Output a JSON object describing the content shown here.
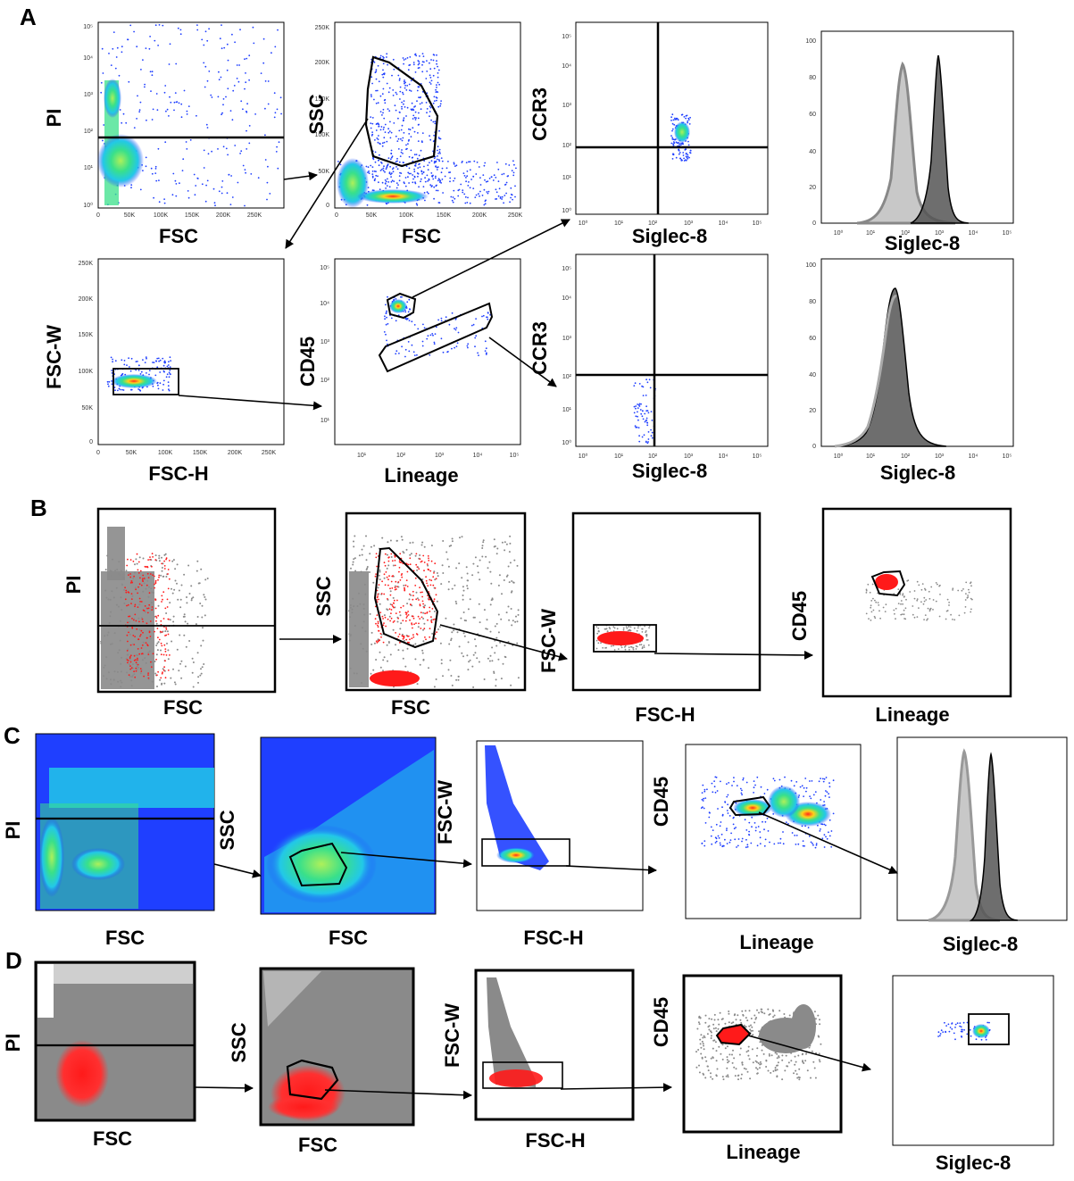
{
  "figure": {
    "panels": [
      {
        "label": "A",
        "rows": [
          [
            {
              "xlabel": "FSC",
              "ylabel": "PI",
              "x_ticks": [
                "0",
                "50K",
                "100K",
                "150K",
                "200K",
                "250K"
              ],
              "y_ticks": [
                "10⁰",
                "10¹",
                "10²",
                "10³",
                "10⁴",
                "10⁵"
              ]
            },
            {
              "xlabel": "FSC",
              "ylabel": "SSC",
              "x_ticks": [
                "0",
                "50K",
                "100K",
                "150K",
                "200K",
                "250K"
              ],
              "y_ticks": [
                "0",
                "50K",
                "100K",
                "150K",
                "200K",
                "250K"
              ]
            },
            {
              "xlabel": "Siglec-8",
              "ylabel": "CCR3",
              "x_ticks": [
                "10⁰",
                "10¹",
                "10²",
                "10³",
                "10⁴",
                "10⁵"
              ],
              "y_ticks": [
                "10⁰",
                "10¹",
                "10²",
                "10³",
                "10⁴",
                "10⁵"
              ]
            },
            {
              "xlabel": "Siglec-8",
              "ylabel": "",
              "x_ticks": [
                "10⁰",
                "10¹",
                "10²",
                "10³",
                "10⁴",
                "10⁵"
              ],
              "y_ticks": [
                "0",
                "20",
                "40",
                "60",
                "80",
                "100"
              ]
            }
          ],
          [
            {
              "xlabel": "FSC-H",
              "ylabel": "FSC-W",
              "x_ticks": [
                "0",
                "50K",
                "100K",
                "150K",
                "200K",
                "250K"
              ],
              "y_ticks": [
                "0",
                "50K",
                "100K",
                "150K",
                "200K",
                "250K"
              ]
            },
            {
              "xlabel": "Lineage",
              "ylabel": "CD45",
              "x_ticks": [
                "10¹",
                "10²",
                "10³",
                "10⁴",
                "10⁵"
              ],
              "y_ticks": [
                "10¹",
                "10²",
                "10³",
                "10⁴",
                "10⁵"
              ]
            },
            {
              "xlabel": "Siglec-8",
              "ylabel": "CCR3",
              "x_ticks": [
                "10⁰",
                "10¹",
                "10²",
                "10³",
                "10⁴",
                "10⁵"
              ],
              "y_ticks": [
                "10⁰",
                "10¹",
                "10²",
                "10³",
                "10⁴",
                "10⁵"
              ]
            },
            {
              "xlabel": "Siglec-8",
              "ylabel": "",
              "x_ticks": [
                "10⁰",
                "10¹",
                "10²",
                "10³",
                "10⁴",
                "10⁵"
              ],
              "y_ticks": [
                "0",
                "20",
                "40",
                "60",
                "80",
                "100"
              ]
            }
          ]
        ]
      },
      {
        "label": "B",
        "plots": [
          {
            "xlabel": "FSC",
            "ylabel": "PI"
          },
          {
            "xlabel": "FSC",
            "ylabel": "SSC"
          },
          {
            "xlabel": "FSC-H",
            "ylabel": "FSC-W"
          },
          {
            "xlabel": "Lineage",
            "ylabel": "CD45"
          }
        ]
      },
      {
        "label": "C",
        "plots": [
          {
            "xlabel": "FSC",
            "ylabel": "PI"
          },
          {
            "xlabel": "FSC",
            "ylabel": "SSC"
          },
          {
            "xlabel": "FSC-H",
            "ylabel": "FSC-W"
          },
          {
            "xlabel": "Lineage",
            "ylabel": "CD45"
          },
          {
            "xlabel": "Siglec-8",
            "ylabel": ""
          }
        ]
      },
      {
        "label": "D",
        "plots": [
          {
            "xlabel": "FSC",
            "ylabel": "PI"
          },
          {
            "xlabel": "FSC",
            "ylabel": "SSC"
          },
          {
            "xlabel": "FSC-H",
            "ylabel": "FSC-W"
          },
          {
            "xlabel": "Lineage",
            "ylabel": "CD45"
          },
          {
            "xlabel": "Siglec-8",
            "ylabel": ""
          }
        ]
      }
    ],
    "colors": {
      "dots_blue": "#1f3fff",
      "dots_gray": "#8a8a8a",
      "dots_red": "#ff1a1a",
      "density_green": "#39e08a",
      "density_cyan": "#22c8e8",
      "hist_light": "#c8c8c8",
      "hist_dark": "#555555"
    }
  }
}
